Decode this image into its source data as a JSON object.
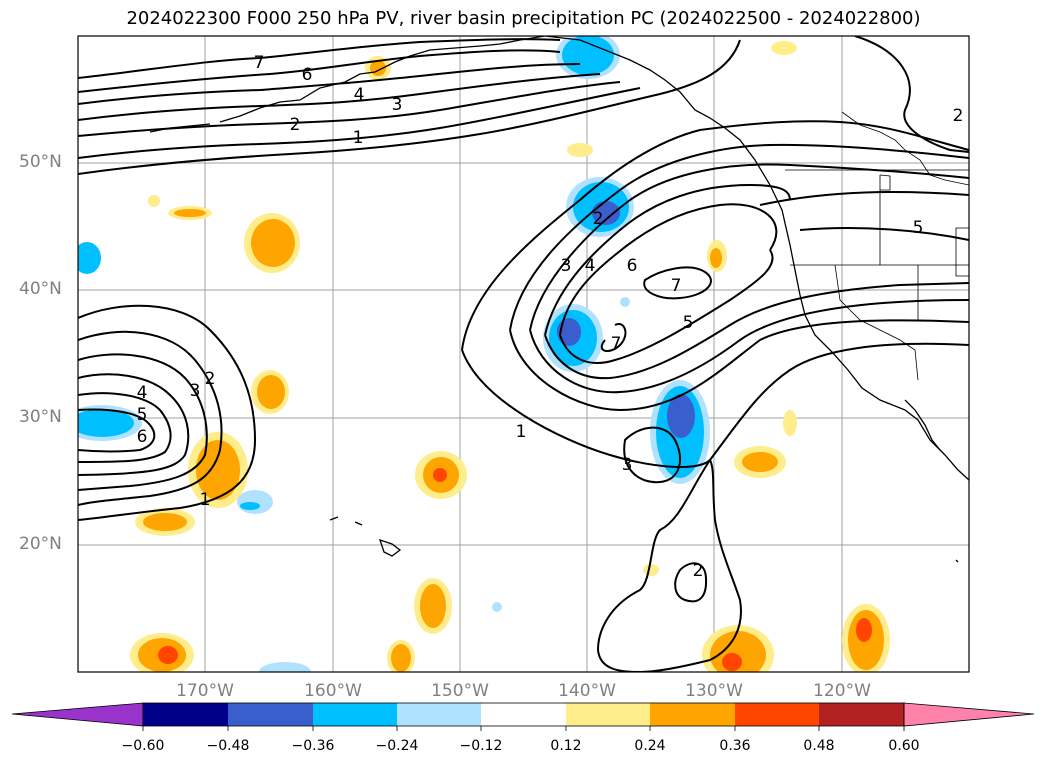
{
  "title": "2024022300 F000 250 hPa PV, river basin precipitation PC (2024022500 - 2024022800)",
  "lat_labels": [
    "50°N",
    "40°N",
    "30°N",
    "20°N"
  ],
  "lon_labels": [
    "170°W",
    "160°W",
    "150°W",
    "140°W",
    "130°W",
    "120°W"
  ],
  "contour_labels": {
    "nw": [
      "7",
      "6",
      "4",
      "3",
      "2",
      "1"
    ],
    "ridge": [
      "3",
      "4",
      "6",
      "7",
      "5",
      "7",
      "1",
      "3",
      "2",
      "2",
      "2",
      "5"
    ],
    "sw": [
      "4",
      "5",
      "6",
      "3",
      "2",
      "1"
    ]
  },
  "colorbar": {
    "ticks": [
      "−0.60",
      "−0.48",
      "−0.36",
      "−0.24",
      "−0.12",
      "0.12",
      "0.24",
      "0.36",
      "0.48",
      "0.60"
    ],
    "colors": {
      "below_min": "#9933cc",
      "neg_060_048": "#00008b",
      "neg_048_036": "#3a5fcd",
      "neg_036_024": "#00bfff",
      "neg_024_012": "#b0e2ff",
      "neutral": "#ffffff",
      "pos_012_024": "#ffec8b",
      "pos_024_036": "#ffa500",
      "pos_036_048": "#ff4500",
      "pos_048_060": "#b22222",
      "above_max": "#ff82ab"
    }
  }
}
